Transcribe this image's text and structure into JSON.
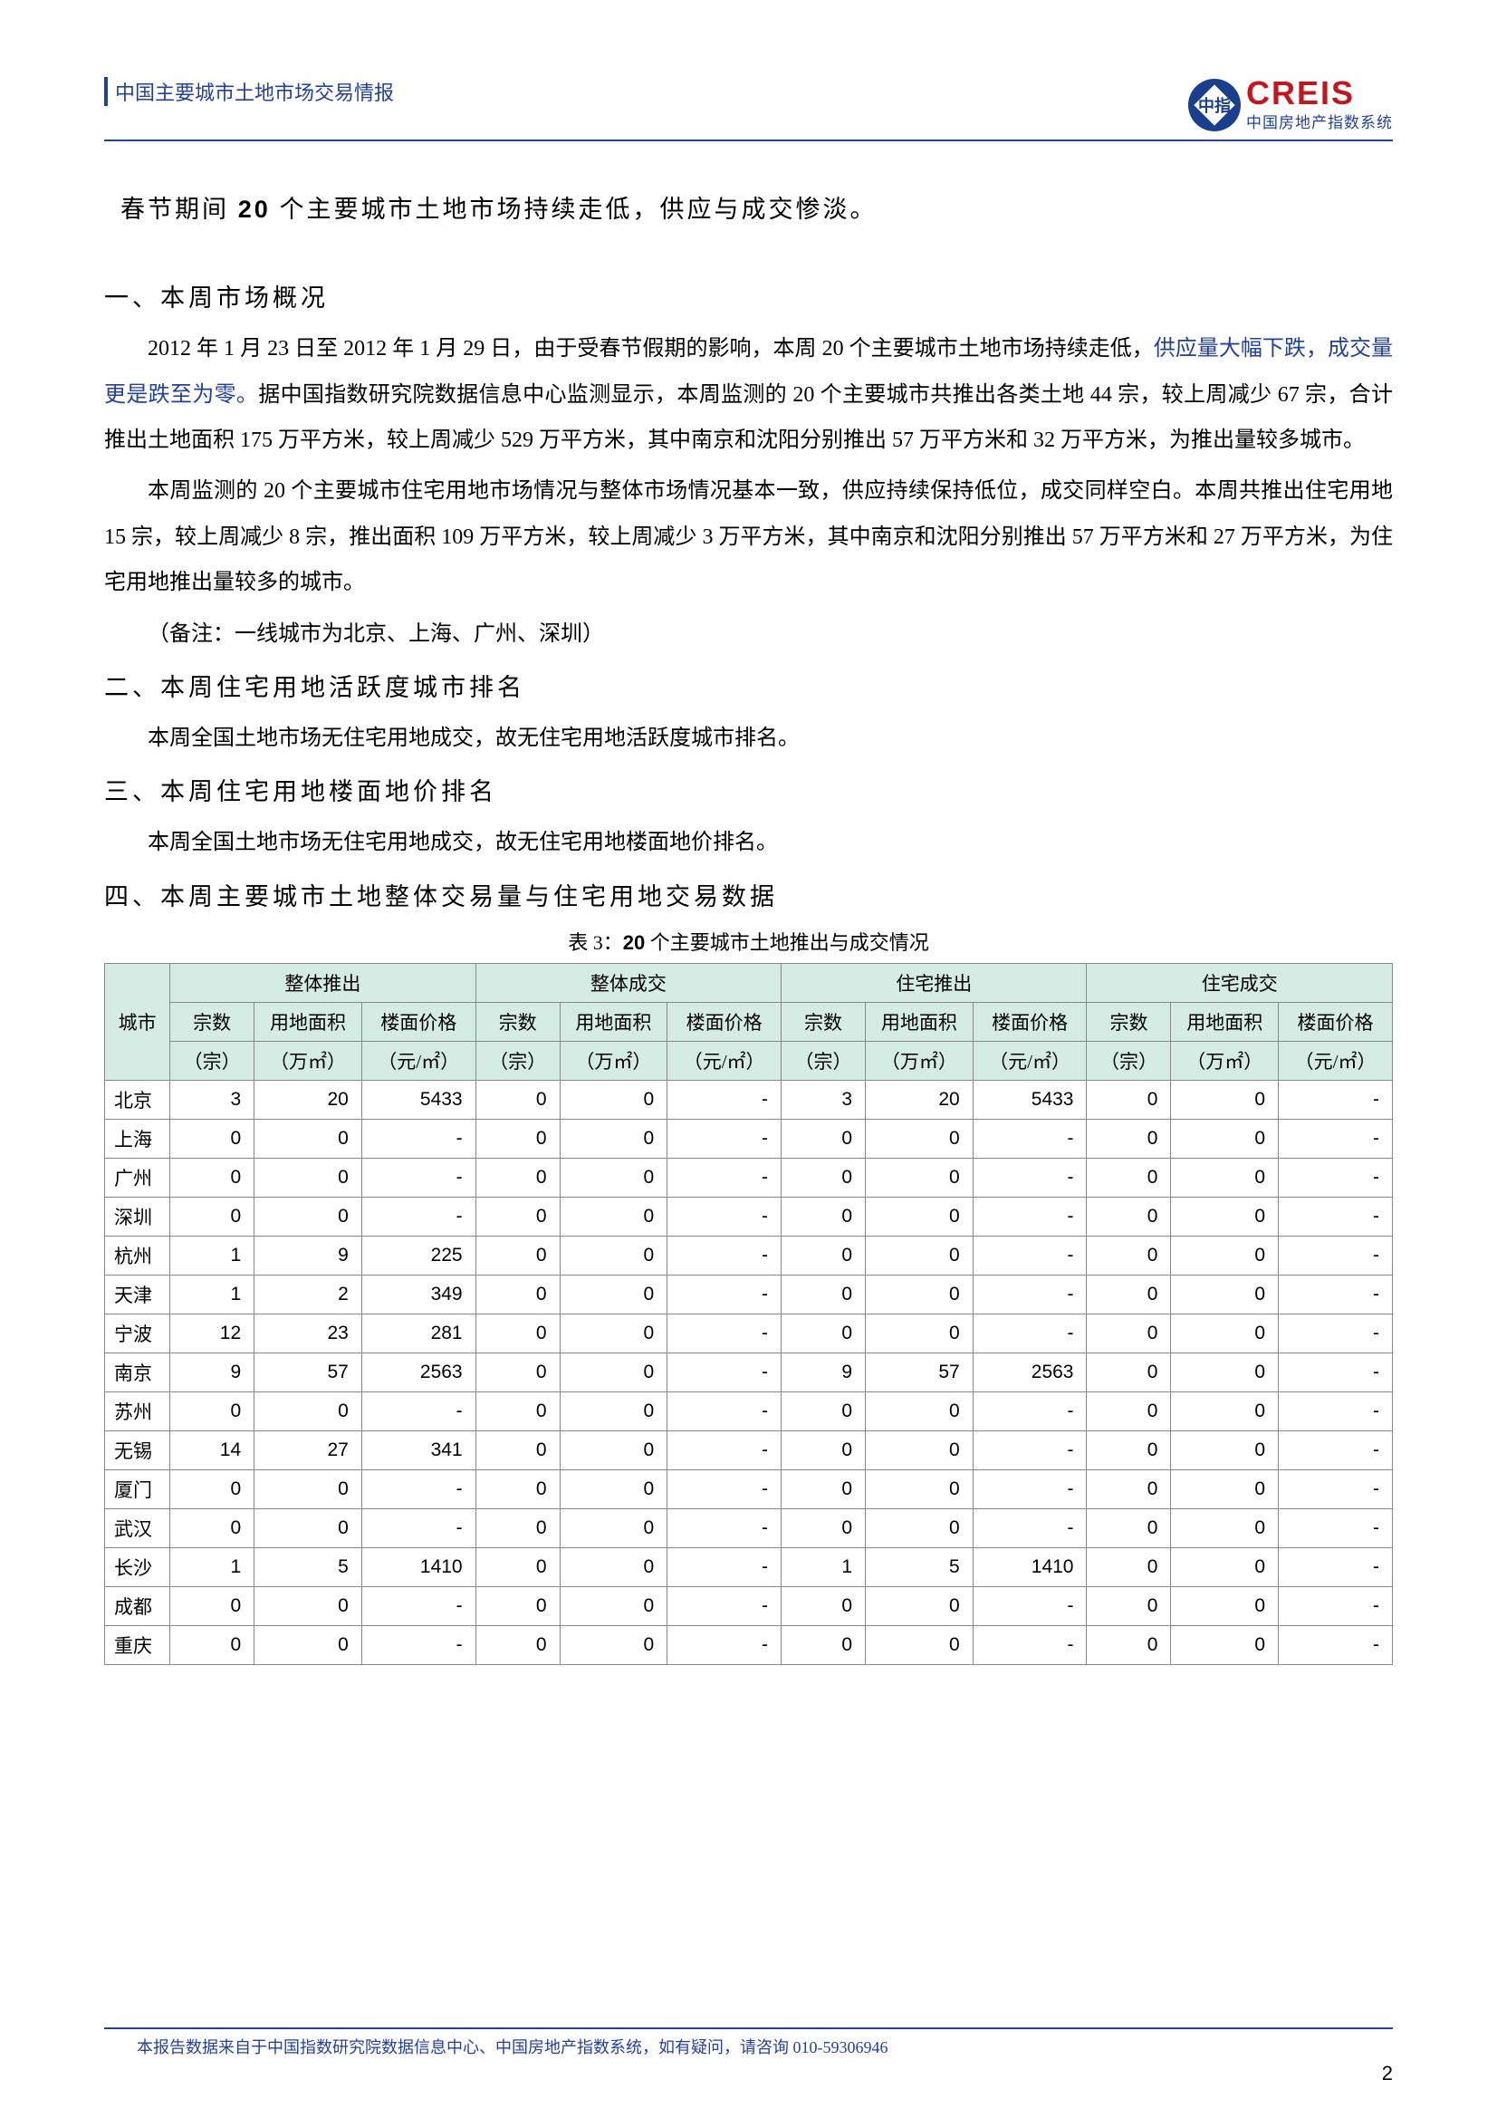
{
  "header": {
    "doc_title": "中国主要城市土地市场交易情报",
    "logo_main": "CREIS",
    "logo_sub": "中国房地产指数系统",
    "logo_badge": "中指"
  },
  "lead": {
    "prefix": "春节期间 ",
    "bold_num": "20",
    "suffix": " 个主要城市土地市场持续走低，供应与成交惨淡。"
  },
  "sections": {
    "s1_title": "一、本周市场概况",
    "s1_p1a": "2012 年 1 月 23 日至 2012 年 1 月 29 日，由于受春节假期的影响，本周 20 个主要城市土地市场持续走低，",
    "s1_p1b": "供应量大幅下跌，成交量更是跌至为零。",
    "s1_p1c": "据中国指数研究院数据信息中心监测显示，本周监测的 20 个主要城市共推出各类土地 44 宗，较上周减少 67 宗，合计推出土地面积 175 万平方米，较上周减少 529 万平方米，其中南京和沈阳分别推出 57 万平方米和 32 万平方米，为推出量较多城市。",
    "s1_p2": "本周监测的 20 个主要城市住宅用地市场情况与整体市场情况基本一致，供应持续保持低位，成交同样空白。本周共推出住宅用地 15 宗，较上周减少 8 宗，推出面积 109 万平方米，较上周减少 3 万平方米，其中南京和沈阳分别推出 57 万平方米和 27 万平方米，为住宅用地推出量较多的城市。",
    "s1_note": "（备注：一线城市为北京、上海、广州、深圳）",
    "s2_title": "二、本周住宅用地活跃度城市排名",
    "s2_p": "本周全国土地市场无住宅用地成交，故无住宅用地活跃度城市排名。",
    "s3_title": "三、本周住宅用地楼面地价排名",
    "s3_p": "本周全国土地市场无住宅用地成交，故无住宅用地楼面地价排名。",
    "s4_title": "四、本周主要城市土地整体交易量与住宅用地交易数据"
  },
  "table": {
    "caption_label": "表 3：",
    "caption_num": "20",
    "caption_rest": " 个主要城市土地推出与成交情况",
    "group_headers": [
      "整体推出",
      "整体成交",
      "住宅推出",
      "住宅成交"
    ],
    "city_header": "城市",
    "sub_headers": {
      "count": "宗数",
      "area": "用地面积",
      "price": "楼面价格",
      "price2": "楼面价格"
    },
    "unit_headers": {
      "count": "（宗）",
      "area": "（万㎡）",
      "price": "（元/㎡）"
    },
    "rows": [
      {
        "city": "北京",
        "v": [
          3,
          20,
          5433,
          0,
          0,
          "-",
          3,
          20,
          5433,
          0,
          0,
          "-"
        ]
      },
      {
        "city": "上海",
        "v": [
          0,
          0,
          "-",
          0,
          0,
          "-",
          0,
          0,
          "-",
          0,
          0,
          "-"
        ]
      },
      {
        "city": "广州",
        "v": [
          0,
          0,
          "-",
          0,
          0,
          "-",
          0,
          0,
          "-",
          0,
          0,
          "-"
        ]
      },
      {
        "city": "深圳",
        "v": [
          0,
          0,
          "-",
          0,
          0,
          "-",
          0,
          0,
          "-",
          0,
          0,
          "-"
        ]
      },
      {
        "city": "杭州",
        "v": [
          1,
          9,
          225,
          0,
          0,
          "-",
          0,
          0,
          "-",
          0,
          0,
          "-"
        ]
      },
      {
        "city": "天津",
        "v": [
          1,
          2,
          349,
          0,
          0,
          "-",
          0,
          0,
          "-",
          0,
          0,
          "-"
        ]
      },
      {
        "city": "宁波",
        "v": [
          12,
          23,
          281,
          0,
          0,
          "-",
          0,
          0,
          "-",
          0,
          0,
          "-"
        ]
      },
      {
        "city": "南京",
        "v": [
          9,
          57,
          2563,
          0,
          0,
          "-",
          9,
          57,
          2563,
          0,
          0,
          "-"
        ]
      },
      {
        "city": "苏州",
        "v": [
          0,
          0,
          "-",
          0,
          0,
          "-",
          0,
          0,
          "-",
          0,
          0,
          "-"
        ]
      },
      {
        "city": "无锡",
        "v": [
          14,
          27,
          341,
          0,
          0,
          "-",
          0,
          0,
          "-",
          0,
          0,
          "-"
        ]
      },
      {
        "city": "厦门",
        "v": [
          0,
          0,
          "-",
          0,
          0,
          "-",
          0,
          0,
          "-",
          0,
          0,
          "-"
        ]
      },
      {
        "city": "武汉",
        "v": [
          0,
          0,
          "-",
          0,
          0,
          "-",
          0,
          0,
          "-",
          0,
          0,
          "-"
        ]
      },
      {
        "city": "长沙",
        "v": [
          1,
          5,
          1410,
          0,
          0,
          "-",
          1,
          5,
          1410,
          0,
          0,
          "-"
        ]
      },
      {
        "city": "成都",
        "v": [
          0,
          0,
          "-",
          0,
          0,
          "-",
          0,
          0,
          "-",
          0,
          0,
          "-"
        ]
      },
      {
        "city": "重庆",
        "v": [
          0,
          0,
          "-",
          0,
          0,
          "-",
          0,
          0,
          "-",
          0,
          0,
          "-"
        ]
      }
    ],
    "header_bg": "#d4ece3",
    "border_color": "#888888"
  },
  "footer": {
    "text": "本报告数据来自于中国指数研究院数据信息中心、中国房地产指数系统，如有疑问，请咨询 010-59306946",
    "page_num": "2"
  },
  "colors": {
    "brand_blue": "#24419a",
    "brand_red": "#c01820",
    "text": "#000000"
  }
}
